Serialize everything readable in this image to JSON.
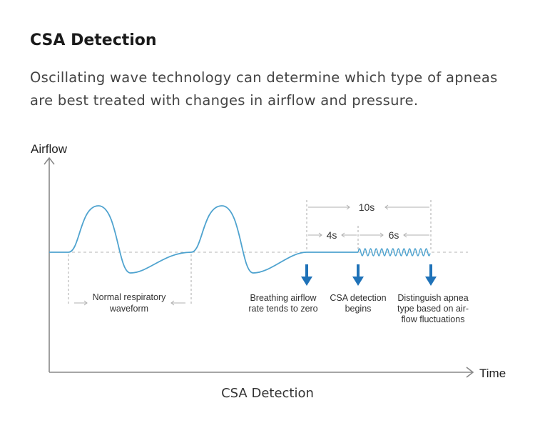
{
  "heading": {
    "title": "CSA Detection",
    "description_line1": "Oscillating wave technology can determine which type of apneas",
    "description_line2": "are best treated with changes in airflow and pressure."
  },
  "diagram": {
    "y_axis_label": "Airflow",
    "x_axis_label": "Time",
    "caption": "CSA Detection",
    "durations": {
      "total": "10s",
      "zero_flow": "4s",
      "detection": "6s"
    },
    "annotations": {
      "normal_line1": "Normal respiratory",
      "normal_line2": "waveform",
      "zero_line1": "Breathing airflow",
      "zero_line2": "rate tends to zero",
      "detect_line1": "CSA detection",
      "detect_line2": "begins",
      "distinguish_line1": "Distinguish apnea",
      "distinguish_line2": "type based on air-",
      "distinguish_line3": "flow fluctuations"
    },
    "colors": {
      "waveform": "#4fa3cf",
      "arrow": "#1f72b8",
      "axis": "#888888",
      "dashed": "#b5b5b5"
    }
  }
}
